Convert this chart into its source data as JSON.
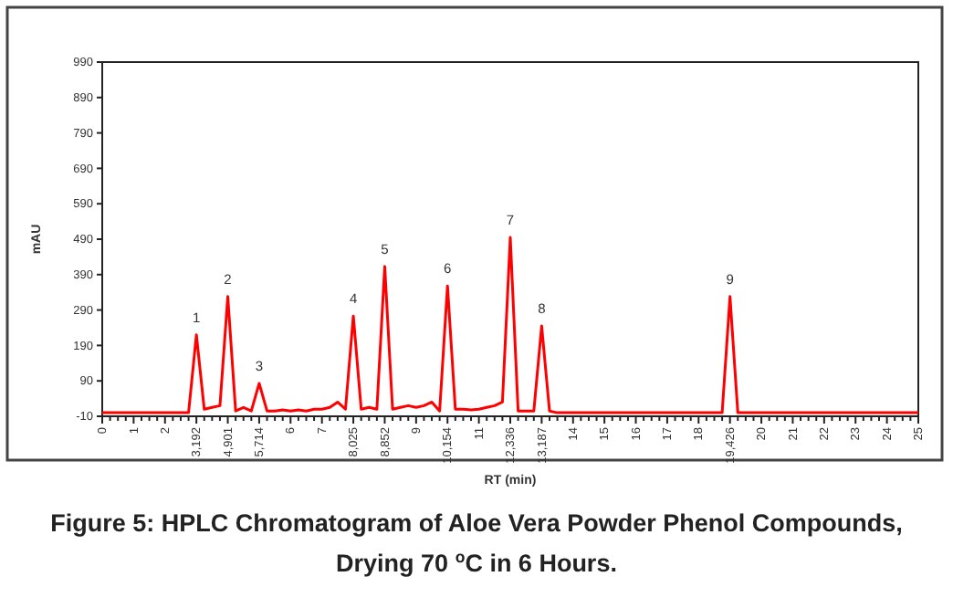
{
  "chart_data": {
    "type": "line",
    "title": "Figure 5: HPLC Chromatogram of Aloe Vera Powder Phenol Compounds, Drying 70 $^{o}$C in 6 Hours.",
    "xlabel": "RT (min)",
    "ylabel": "mAU",
    "categories": [
      "0",
      null,
      null,
      null,
      "1",
      null,
      null,
      null,
      "2",
      null,
      null,
      null,
      "3,192",
      null,
      null,
      null,
      "4,901",
      null,
      null,
      null,
      "5,714",
      null,
      null,
      null,
      "6",
      null,
      null,
      null,
      "7",
      null,
      null,
      null,
      "8,025",
      null,
      null,
      null,
      "8,852",
      null,
      null,
      null,
      "9",
      null,
      null,
      null,
      "10,154",
      null,
      null,
      null,
      "11",
      null,
      null,
      null,
      "12,336",
      null,
      null,
      null,
      "13,187",
      null,
      null,
      null,
      "14",
      null,
      null,
      null,
      "15",
      null,
      null,
      null,
      "16",
      null,
      null,
      null,
      "17",
      null,
      null,
      null,
      "18",
      null,
      null,
      null,
      "19,426",
      null,
      null,
      null,
      "20",
      null,
      null,
      null,
      "21",
      null,
      null,
      null,
      "22",
      null,
      null,
      null,
      "23",
      null,
      null,
      null,
      "24",
      null,
      null,
      null,
      "25"
    ],
    "series": [
      {
        "color": "#ff0000",
        "values": [
          0,
          0,
          0,
          0,
          0,
          0,
          0,
          0,
          0,
          0,
          0,
          0,
          220,
          10,
          15,
          20,
          328,
          5,
          15,
          5,
          83,
          5,
          5,
          8,
          5,
          8,
          5,
          10,
          10,
          15,
          30,
          10,
          273,
          10,
          15,
          10,
          413,
          10,
          15,
          20,
          15,
          20,
          30,
          5,
          358,
          10,
          10,
          8,
          10,
          15,
          20,
          30,
          495,
          5,
          5,
          5,
          245,
          5,
          0,
          0,
          0,
          0,
          0,
          0,
          0,
          0,
          0,
          0,
          0,
          0,
          0,
          0,
          0,
          0,
          0,
          0,
          0,
          0,
          0,
          0,
          328,
          0,
          0,
          0,
          0,
          0,
          0,
          0,
          0,
          0,
          0,
          0,
          0,
          0,
          0,
          0,
          0,
          0,
          0,
          0,
          0,
          0,
          0,
          0,
          0
        ]
      }
    ],
    "ylim": [
      -10,
      990
    ],
    "yticks": [
      -10,
      90,
      190,
      290,
      390,
      490,
      590,
      690,
      790,
      890,
      990
    ],
    "annotations": [
      {
        "text": "1",
        "x": "3,192",
        "y": 220
      },
      {
        "text": "2",
        "x": "4,901",
        "y": 328
      },
      {
        "text": "3",
        "x": "5,714",
        "y": 83
      },
      {
        "text": "4",
        "x": "8,025",
        "y": 273
      },
      {
        "text": "5",
        "x": "8,852",
        "y": 413
      },
      {
        "text": "6",
        "x": "10,154",
        "y": 358
      },
      {
        "text": "7",
        "x": "12,336",
        "y": 495
      },
      {
        "text": "8",
        "x": "13,187",
        "y": 245
      },
      {
        "text": "9",
        "x": "19,426",
        "y": 328
      }
    ],
    "grid": false,
    "marker": "none",
    "line_style": "solid"
  }
}
